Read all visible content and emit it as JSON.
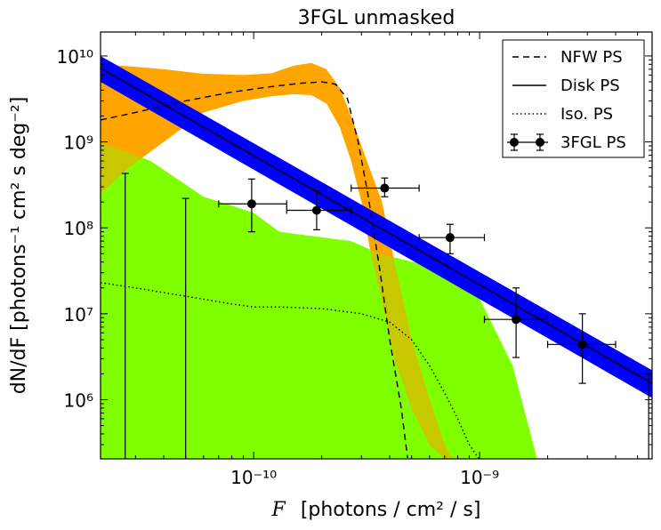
{
  "chart_data": {
    "type": "line",
    "title": "3FGL unmasked",
    "xlabel_var": "F",
    "xlabel_units": "[photons / cm² / s]",
    "ylabel": "dN/dF [photons⁻¹ cm² s deg⁻²]",
    "xscale": "log",
    "yscale": "log",
    "xlim": [
      2.1e-11,
      5.8e-09
    ],
    "ylim": [
      205000.0,
      19000000000.0
    ],
    "x_ticks": [
      {
        "value": 1e-10,
        "label": "10⁻¹⁰"
      },
      {
        "value": 1e-09,
        "label": "10⁻⁹"
      }
    ],
    "y_ticks": [
      {
        "value": 1000000.0,
        "label": "10⁶"
      },
      {
        "value": 10000000.0,
        "label": "10⁷"
      },
      {
        "value": 100000000.0,
        "label": "10⁸"
      },
      {
        "value": 1000000000.0,
        "label": "10⁹"
      },
      {
        "value": 10000000000.0,
        "label": "10¹⁰"
      }
    ],
    "legend": {
      "position": "top-right",
      "entries": [
        {
          "label": "NFW PS",
          "style": "dashed"
        },
        {
          "label": "Disk PS",
          "style": "solid"
        },
        {
          "label": "Iso. PS",
          "style": "dotted"
        },
        {
          "label": "3FGL PS",
          "style": "errorbar"
        }
      ]
    },
    "colors": {
      "nfw_band": "#ffa500",
      "disk_band": "#0000ff",
      "iso_band": "#7fff00",
      "overlap": "#c8c800"
    },
    "series": [
      {
        "name": "Iso. PS band",
        "kind": "band",
        "x": [
          2.1e-11,
          3.5e-11,
          6e-11,
          1e-10,
          1.3e-10,
          2.7e-10,
          3.6e-10,
          5.5e-10,
          8e-10,
          1e-09,
          1.4e-09,
          1.8e-09
        ],
        "upper": [
          1000000000.0,
          600000000.0,
          230000000.0,
          150000000.0,
          90000000.0,
          70000000.0,
          50000000.0,
          38000000.0,
          28000000.0,
          15000000.0,
          2500000.0,
          200000.0
        ],
        "lower_floor": 205000.0
      },
      {
        "name": "NFW PS band",
        "kind": "band",
        "x": [
          2.1e-11,
          2.8e-11,
          4e-11,
          6e-11,
          9e-11,
          1.2e-10,
          1.5e-10,
          1.8e-10,
          2.1e-10,
          2.4e-10,
          2.7e-10,
          3e-10,
          3.3e-10,
          3.7e-10,
          4.2e-10,
          5e-10,
          6e-10,
          7e-10,
          7.6e-10
        ],
        "upper": [
          8000000000.0,
          7600000000.0,
          7000000000.0,
          6200000000.0,
          6000000000.0,
          6300000000.0,
          7700000000.0,
          8300000000.0,
          7000000000.0,
          4300000000.0,
          2000000000.0,
          900000000.0,
          450000000.0,
          200000000.0,
          40000000.0,
          5000000.0,
          1000000.0,
          300000.0,
          205000.0
        ],
        "lower": [
          250000000.0,
          500000000.0,
          1000000000.0,
          2200000000.0,
          3000000000.0,
          3400000000.0,
          3600000000.0,
          3500000000.0,
          2800000000.0,
          1500000000.0,
          600000000.0,
          200000000.0,
          50000000.0,
          14000000.0,
          3000000.0,
          800000.0,
          300000.0,
          205000.0,
          205000.0
        ]
      },
      {
        "name": "Disk PS band",
        "kind": "band",
        "x": [
          2.1e-11,
          5.8e-09
        ],
        "upper": [
          10000000000.0,
          2200000.0
        ],
        "lower": [
          5000000000.0,
          1050000.0
        ]
      },
      {
        "name": "NFW PS",
        "kind": "line",
        "style": "dashed",
        "x": [
          2.1e-11,
          3e-11,
          5e-11,
          8e-11,
          1.2e-10,
          1.6e-10,
          2e-10,
          2.3e-10,
          2.6e-10,
          2.9e-10,
          3.2e-10,
          3.6e-10,
          4e-10,
          4.5e-10,
          4.8e-10
        ],
        "y": [
          1800000000.0,
          2200000000.0,
          3000000000.0,
          3800000000.0,
          4400000000.0,
          4800000000.0,
          5000000000.0,
          4700000000.0,
          3200000000.0,
          1000000000.0,
          250000000.0,
          35000000.0,
          5000000.0,
          800000.0,
          210000.0
        ]
      },
      {
        "name": "Disk PS",
        "kind": "line",
        "style": "solid",
        "x": [
          2.1e-11,
          5.8e-09
        ],
        "y": [
          7200000000.0,
          1550000.0
        ]
      },
      {
        "name": "Iso. PS",
        "kind": "line",
        "style": "dotted",
        "x": [
          2.1e-11,
          3e-11,
          5e-11,
          8e-11,
          1e-10,
          1.3e-10,
          2e-10,
          3e-10,
          4e-10,
          5e-10,
          6e-10,
          7e-10,
          8e-10,
          9e-10,
          1e-09
        ],
        "y": [
          23000000.0,
          20000000.0,
          16000000.0,
          13000000.0,
          12000000.0,
          12000000.0,
          11500000.0,
          10000000.0,
          8000000.0,
          5000000.0,
          2500000.0,
          1200000.0,
          600000.0,
          300000.0,
          200000.0
        ]
      }
    ],
    "points": [
      {
        "name": "3FGL PS",
        "x": 2.7e-11,
        "y": null,
        "xerr": null,
        "ylo": 205000.0,
        "yhi": 430000000.0
      },
      {
        "name": "3FGL PS",
        "x": 5e-11,
        "y": null,
        "xerr": null,
        "ylo": 205000.0,
        "yhi": 220000000.0
      },
      {
        "name": "3FGL PS",
        "x": 9.8e-11,
        "y": 190000000.0,
        "xlo": 7e-11,
        "xhi": 1.4e-10,
        "ylo": 90000000.0,
        "yhi": 370000000.0
      },
      {
        "name": "3FGL PS",
        "x": 1.9e-10,
        "y": 160000000.0,
        "xlo": 1.4e-10,
        "xhi": 2.7e-10,
        "ylo": 95000000.0,
        "yhi": 270000000.0
      },
      {
        "name": "3FGL PS",
        "x": 3.8e-10,
        "y": 290000000.0,
        "xlo": 2.7e-10,
        "xhi": 5.4e-10,
        "ylo": 230000000.0,
        "yhi": 380000000.0
      },
      {
        "name": "3FGL PS",
        "x": 7.4e-10,
        "y": 77000000.0,
        "xlo": 5.4e-10,
        "xhi": 1.05e-09,
        "ylo": 50000000.0,
        "yhi": 110000000.0
      },
      {
        "name": "3FGL PS",
        "x": 1.45e-09,
        "y": 8600000.0,
        "xlo": 1.05e-09,
        "xhi": 2e-09,
        "ylo": 3100000.0,
        "yhi": 20000000.0
      },
      {
        "name": "3FGL PS",
        "x": 2.85e-09,
        "y": 4400000.0,
        "xlo": 2e-09,
        "xhi": 4e-09,
        "ylo": 1550000.0,
        "yhi": 10000000.0
      },
      {
        "name": "3FGL PS",
        "x": 5.6e-09,
        "y": null,
        "xerr": null,
        "ylo": 205000.0,
        "yhi": 2000000.0
      }
    ]
  }
}
